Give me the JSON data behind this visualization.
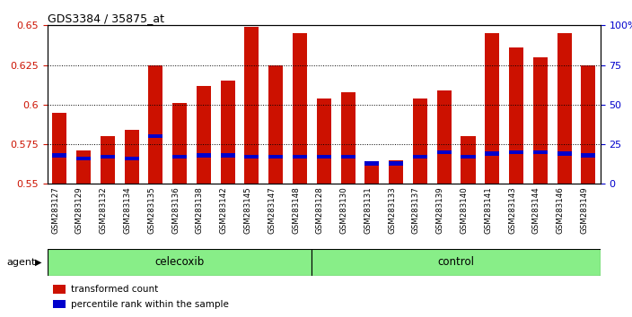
{
  "title": "GDS3384 / 35875_at",
  "samples": [
    "GSM283127",
    "GSM283129",
    "GSM283132",
    "GSM283134",
    "GSM283135",
    "GSM283136",
    "GSM283138",
    "GSM283142",
    "GSM283145",
    "GSM283147",
    "GSM283148",
    "GSM283128",
    "GSM283130",
    "GSM283131",
    "GSM283133",
    "GSM283137",
    "GSM283139",
    "GSM283140",
    "GSM283141",
    "GSM283143",
    "GSM283144",
    "GSM283146",
    "GSM283149"
  ],
  "transformed_count": [
    0.595,
    0.571,
    0.58,
    0.584,
    0.625,
    0.601,
    0.612,
    0.615,
    0.649,
    0.625,
    0.645,
    0.604,
    0.608,
    0.562,
    0.565,
    0.604,
    0.609,
    0.58,
    0.645,
    0.636,
    0.63,
    0.645,
    0.625
  ],
  "percentile_rank": [
    18,
    16,
    17,
    16,
    30,
    17,
    18,
    18,
    17,
    17,
    17,
    17,
    17,
    13,
    13,
    17,
    20,
    17,
    19,
    20,
    20,
    19,
    18
  ],
  "group": [
    "celecoxib",
    "celecoxib",
    "celecoxib",
    "celecoxib",
    "celecoxib",
    "celecoxib",
    "celecoxib",
    "celecoxib",
    "celecoxib",
    "celecoxib",
    "celecoxib",
    "control",
    "control",
    "control",
    "control",
    "control",
    "control",
    "control",
    "control",
    "control",
    "control",
    "control",
    "control"
  ],
  "ymin": 0.55,
  "ymax": 0.65,
  "yticks": [
    0.55,
    0.575,
    0.6,
    0.625,
    0.65
  ],
  "ytick_labels": [
    "0.55",
    "0.575",
    "0.6",
    "0.625",
    "0.65"
  ],
  "y2ticks": [
    0,
    25,
    50,
    75,
    100
  ],
  "bar_color": "#cc1100",
  "percentile_color": "#0000cc",
  "celecoxib_color": "#88ee88",
  "control_color": "#88ee88",
  "bar_width": 0.6,
  "background_color": "#ffffff"
}
